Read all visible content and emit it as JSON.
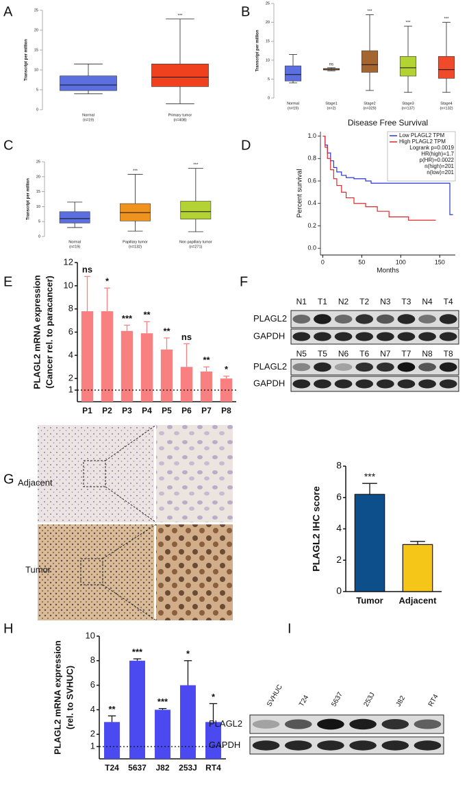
{
  "panel_labels": [
    "A",
    "B",
    "C",
    "D",
    "E",
    "F",
    "G",
    "H",
    "I"
  ],
  "chart_data": [
    {
      "type": "box",
      "ylabel": "Transcript per million",
      "categories": [
        "Normal",
        "Primary tumor"
      ],
      "n_labels": [
        "(n=19)",
        "(n=408)"
      ],
      "min": [
        4,
        1.5
      ],
      "q1": [
        4.8,
        5.8
      ],
      "median": [
        6.2,
        8.2
      ],
      "q3": [
        8.5,
        11.5
      ],
      "max": [
        11.5,
        22.8
      ],
      "colors": [
        "#5b6fe0",
        "#f0411f"
      ],
      "significance": [
        null,
        "***"
      ],
      "ylim": [
        0,
        25
      ],
      "yticks": [
        0,
        5,
        10,
        15,
        20,
        25
      ]
    },
    {
      "type": "box",
      "ylabel": "Transcript per million",
      "categories": [
        "Normal",
        "Stage1",
        "Stage2",
        "Stage3",
        "Stage4"
      ],
      "n_labels": [
        "(n=19)",
        "(n=2)",
        "(n=329)",
        "(n=137)",
        "(n=132)"
      ],
      "min": [
        4,
        7.2,
        2,
        1.5,
        1.5
      ],
      "q1": [
        4.5,
        7.4,
        6.8,
        5.8,
        5.2
      ],
      "median": [
        6.2,
        7.6,
        8.8,
        8,
        7.5
      ],
      "q3": [
        8.5,
        7.8,
        12.5,
        11,
        11
      ],
      "max": [
        11.5,
        8,
        22,
        19,
        20
      ],
      "colors": [
        "#5b6fe0",
        "#e8923a",
        "#a5652e",
        "#b3d335",
        "#ef4a2a"
      ],
      "significance": [
        null,
        "ns",
        "***",
        "***",
        "***"
      ],
      "ylim": [
        0,
        25
      ],
      "yticks": [
        0,
        5,
        10,
        15,
        20,
        25
      ]
    },
    {
      "type": "box",
      "ylabel": "Transcript per million",
      "categories": [
        "Normal",
        "Papillary tumor",
        "Non papillary tumor"
      ],
      "n_labels": [
        "(n=19)",
        "(n=132)",
        "(n=271)"
      ],
      "min": [
        3,
        1.8,
        1.6
      ],
      "q1": [
        4.5,
        5.2,
        5.8
      ],
      "median": [
        6,
        8,
        8.3
      ],
      "q3": [
        8.3,
        11,
        11.8
      ],
      "max": [
        11.5,
        20.8,
        22.8
      ],
      "colors": [
        "#5b6fe0",
        "#f0921e",
        "#b3d335"
      ],
      "significance": [
        null,
        "***",
        "***"
      ],
      "ylim": [
        0,
        25
      ],
      "yticks": [
        0,
        5,
        10,
        15,
        20,
        25
      ]
    },
    {
      "type": "line",
      "title": "Disease Free Survival",
      "xlabel": "Months",
      "ylabel": "Percent survival",
      "series": [
        {
          "name": "Low PLAGL2 TPM",
          "color": "#2a33d6",
          "x": [
            0,
            3,
            3,
            6,
            6,
            10,
            10,
            14,
            14,
            18,
            18,
            24,
            24,
            30,
            30,
            40,
            40,
            55,
            55,
            62,
            62,
            163,
            163,
            167
          ],
          "values": [
            1,
            1,
            0.92,
            0.92,
            0.85,
            0.85,
            0.78,
            0.78,
            0.72,
            0.72,
            0.68,
            0.68,
            0.65,
            0.65,
            0.63,
            0.63,
            0.62,
            0.62,
            0.6,
            0.6,
            0.58,
            0.58,
            0.3,
            0.3
          ]
        },
        {
          "name": "High PLAGL2 TPM",
          "color": "#e0262b",
          "x": [
            0,
            3,
            3,
            6,
            6,
            10,
            10,
            14,
            14,
            18,
            18,
            24,
            24,
            30,
            30,
            40,
            40,
            55,
            55,
            70,
            70,
            85,
            85,
            110,
            110,
            145
          ],
          "values": [
            1,
            1,
            0.9,
            0.9,
            0.8,
            0.8,
            0.7,
            0.7,
            0.62,
            0.62,
            0.56,
            0.56,
            0.5,
            0.5,
            0.45,
            0.45,
            0.4,
            0.4,
            0.37,
            0.37,
            0.33,
            0.33,
            0.28,
            0.28,
            0.25,
            0.25
          ]
        }
      ],
      "stats": [
        "Logrank p=0.0019",
        "HR(high)=1.7",
        "p(HR)=0.0022",
        "n(high)=201",
        "n(low)=201"
      ],
      "xlim": [
        -3,
        170
      ],
      "xticks": [
        0,
        50,
        100,
        150
      ],
      "ylim": [
        -0.06,
        1.04
      ],
      "yticks": [
        {
          "value": 0,
          "label": "0.0"
        },
        {
          "value": 0.2,
          "label": "0.2"
        },
        {
          "value": 0.4,
          "label": "0.4"
        },
        {
          "value": 0.6,
          "label": "0.6"
        },
        {
          "value": 0.8,
          "label": "0.8"
        },
        {
          "value": 1,
          "label": "1.0"
        }
      ]
    },
    {
      "type": "bar",
      "ylabel": [
        "PLAGL2 mRNA expression",
        "(Cancer rel. to paracancer)"
      ],
      "categories": [
        "P1",
        "P2",
        "P3",
        "P4",
        "P5",
        "P6",
        "P7",
        "P8"
      ],
      "values": [
        7.8,
        7.8,
        6.1,
        5.9,
        4.5,
        3,
        2.6,
        2
      ],
      "errors": [
        3,
        2,
        0.5,
        1,
        1,
        2,
        0.4,
        0.2
      ],
      "significance": [
        "ns",
        "*",
        "***",
        "**",
        "**",
        "ns",
        "**",
        "*"
      ],
      "color": "#f88080",
      "ylim": [
        0,
        12
      ],
      "yticks": [
        1,
        2,
        4,
        6,
        8,
        10,
        12
      ],
      "reference_line": 1
    },
    {
      "type": "bar",
      "ylabel": [
        "PLAGL2 IHC score"
      ],
      "categories": [
        "Tumor",
        "Adjacent"
      ],
      "values": [
        6.2,
        3.0
      ],
      "errors": [
        0.7,
        0.2
      ],
      "significance": [
        "***",
        null
      ],
      "colors": [
        "#0d4f8b",
        "#f5c518"
      ],
      "ylim": [
        0,
        8
      ],
      "yticks": [
        0,
        2,
        4,
        6,
        8
      ]
    },
    {
      "type": "bar",
      "ylabel": [
        "PLAGL2 mRNA expression",
        "(rel. to SVHUC)"
      ],
      "categories": [
        "T24",
        "5637",
        "J82",
        "253J",
        "RT4"
      ],
      "values": [
        3,
        8,
        4,
        6,
        3
      ],
      "errors": [
        0.5,
        0.15,
        0.1,
        2,
        1.5
      ],
      "significance": [
        "**",
        "***",
        "***",
        "*",
        "*"
      ],
      "color": "#4a4af0",
      "ylim": [
        0,
        10
      ],
      "yticks": [
        1,
        2,
        4,
        6,
        8,
        10
      ],
      "reference_line": 1
    }
  ],
  "western_blots": [
    {
      "lanes": [
        "N1",
        "T1",
        "N2",
        "T2",
        "N3",
        "T3",
        "N4",
        "T4"
      ],
      "rows": [
        "PLAGL2",
        "GAPDH"
      ]
    },
    {
      "lanes": [
        "N5",
        "T5",
        "N6",
        "T6",
        "N7",
        "T7",
        "N8",
        "T8"
      ],
      "rows": [
        "PLAGL2",
        "GAPDH"
      ]
    },
    {
      "lanes": [
        "SVHUC",
        "T24",
        "5637",
        "253J",
        "J82",
        "RT4"
      ],
      "rows": [
        "PLAGL2",
        "GAPDH"
      ]
    }
  ],
  "ihc": {
    "rows": [
      "Adjacent",
      "Tumor"
    ]
  }
}
